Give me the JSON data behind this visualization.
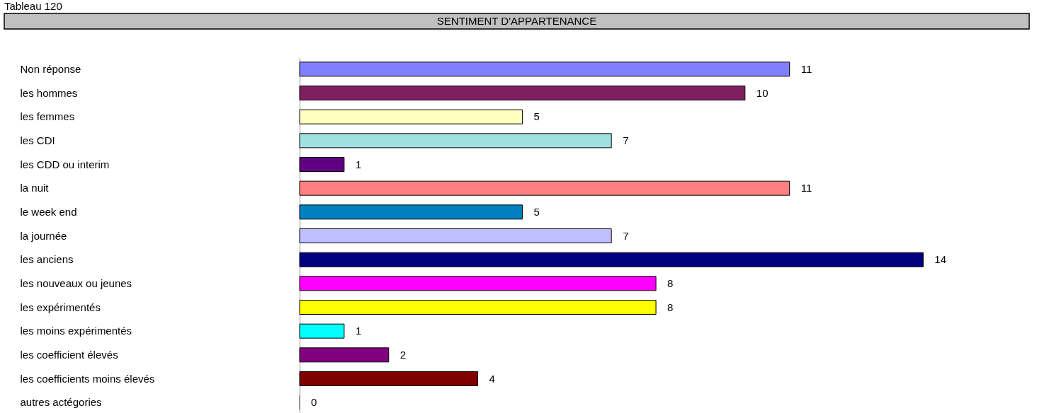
{
  "chart_data": {
    "type": "bar",
    "orientation": "horizontal",
    "title": "SENTIMENT D'APPARTENANCE",
    "annotations": [
      "Tableau 120"
    ],
    "categories": [
      "Non réponse",
      "les hommes",
      "les femmes",
      "les CDI",
      "les CDD ou interim",
      "la nuit",
      "le week end",
      "la journée",
      "les anciens",
      "les nouveaux ou jeunes",
      "les expérimentés",
      "les moins expérimentés",
      "les coefficient élevés",
      "les coefficients moins élevés",
      "autres actégories"
    ],
    "values": [
      11,
      10,
      5,
      7,
      1,
      11,
      5,
      7,
      14,
      8,
      8,
      1,
      2,
      4,
      0
    ],
    "colors": [
      "#8080ff",
      "#7f1f5f",
      "#ffffc0",
      "#a0e0e0",
      "#600080",
      "#ff8080",
      "#0080c0",
      "#c0c0ff",
      "#000080",
      "#ff00ff",
      "#ffff00",
      "#00ffff",
      "#800080",
      "#800000",
      "#808080"
    ],
    "data_labels": true,
    "legend": false,
    "grid": false
  }
}
